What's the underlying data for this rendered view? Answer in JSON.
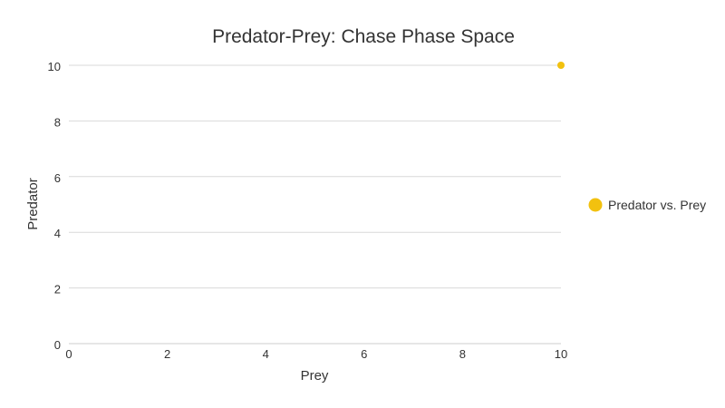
{
  "chart_data": {
    "type": "scatter",
    "title": "Predator-Prey: Chase Phase Space",
    "xlabel": "Prey",
    "ylabel": "Predator",
    "xlim": [
      0,
      10
    ],
    "ylim": [
      0,
      10
    ],
    "x_ticks": [
      "0",
      "2",
      "4",
      "6",
      "8",
      "10"
    ],
    "y_ticks": [
      "0",
      "2",
      "4",
      "6",
      "8",
      "10"
    ],
    "grid": "horizontal",
    "legend_position": "right",
    "series": [
      {
        "name": "Predator vs. Prey",
        "color": "#f2c10f",
        "points": [
          {
            "x": 10,
            "y": 10
          }
        ]
      }
    ]
  }
}
